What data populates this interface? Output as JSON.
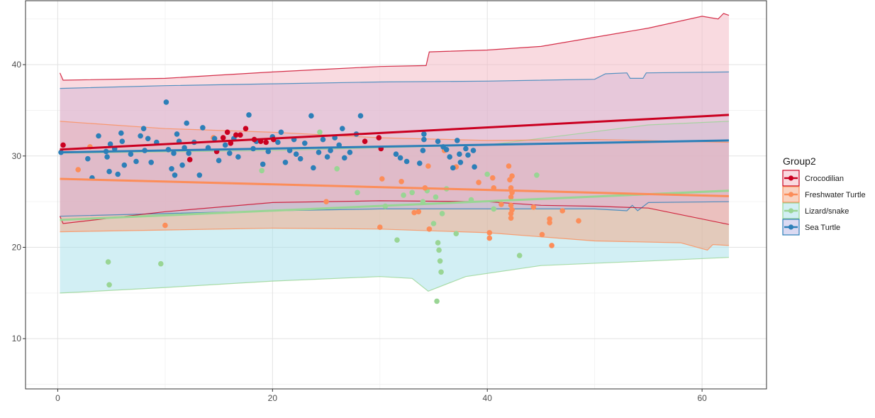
{
  "chart_data": {
    "type": "scatter",
    "title": "",
    "xlabel": "",
    "ylabel": "",
    "xlim": [
      -3,
      66
    ],
    "ylim": [
      4.5,
      47
    ],
    "x_ticks": [
      0,
      20,
      40,
      60
    ],
    "y_ticks": [
      10,
      20,
      30,
      40
    ],
    "grid": true,
    "legend": {
      "title": "Group2",
      "position": "right",
      "entries": [
        "Crocodilian",
        "Freshwater Turtle",
        "Lizard/snake",
        "Sea Turtle"
      ]
    },
    "series": [
      {
        "name": "Lizard/snake",
        "color": "#99D594",
        "fill": "#A6E0EA",
        "trend": {
          "x": [
            0.2,
            62.5
          ],
          "y": [
            23.0,
            26.2
          ]
        },
        "band_upper": [
          [
            0.2,
            30.3
          ],
          [
            20,
            30.6
          ],
          [
            40,
            31.2
          ],
          [
            55,
            33.4
          ],
          [
            62.5,
            33.8
          ]
        ],
        "band_lower": [
          [
            0.2,
            15.0
          ],
          [
            2,
            15.1
          ],
          [
            10,
            15.6
          ],
          [
            20,
            16.3
          ],
          [
            30,
            16.8
          ],
          [
            33,
            16.6
          ],
          [
            34.5,
            15.2
          ],
          [
            38,
            16.8
          ],
          [
            45,
            18.0
          ],
          [
            55,
            18.5
          ],
          [
            62.5,
            18.9
          ]
        ],
        "points": [
          [
            4.7,
            18.4
          ],
          [
            4.8,
            15.9
          ],
          [
            9.6,
            18.2
          ],
          [
            19,
            28.4
          ],
          [
            24.4,
            32.6
          ],
          [
            26,
            28.6
          ],
          [
            27.9,
            26.0
          ],
          [
            30.5,
            24.5
          ],
          [
            31.6,
            20.8
          ],
          [
            32.2,
            25.7
          ],
          [
            33,
            26.0
          ],
          [
            34,
            25.0
          ],
          [
            34.4,
            26.2
          ],
          [
            35,
            22.6
          ],
          [
            35.2,
            25.5
          ],
          [
            35.4,
            20.5
          ],
          [
            35.5,
            19.7
          ],
          [
            35.6,
            18.5
          ],
          [
            35.7,
            17.3
          ],
          [
            35.3,
            14.1
          ],
          [
            35.8,
            23.7
          ],
          [
            36.2,
            26.4
          ],
          [
            37.1,
            21.5
          ],
          [
            38.5,
            25.2
          ],
          [
            40,
            28.0
          ],
          [
            43,
            19.1
          ],
          [
            44.6,
            27.9
          ],
          [
            40.6,
            24.2
          ]
        ]
      },
      {
        "name": "Freshwater Turtle",
        "color": "#FC8D59",
        "fill": "#F4A582",
        "trend": {
          "x": [
            0.2,
            62.5
          ],
          "y": [
            27.5,
            25.6
          ]
        },
        "band_upper": [
          [
            0.2,
            33.8
          ],
          [
            10,
            33.0
          ],
          [
            20,
            32.6
          ],
          [
            30,
            32.0
          ],
          [
            40,
            31.7
          ],
          [
            50,
            31.8
          ],
          [
            62.5,
            31.5
          ]
        ],
        "band_lower": [
          [
            0.2,
            21.7
          ],
          [
            10,
            21.9
          ],
          [
            20,
            22.1
          ],
          [
            30,
            22.0
          ],
          [
            40,
            21.6
          ],
          [
            50,
            20.7
          ],
          [
            58,
            20.5
          ],
          [
            60.5,
            19.7
          ],
          [
            61,
            20.3
          ],
          [
            62.5,
            20.2
          ]
        ],
        "points": [
          [
            1.9,
            28.5
          ],
          [
            3,
            31
          ],
          [
            10,
            22.4
          ],
          [
            14.5,
            32.0
          ],
          [
            25,
            25.0
          ],
          [
            30,
            22.2
          ],
          [
            30.2,
            27.5
          ],
          [
            32,
            27.2
          ],
          [
            33.2,
            23.8
          ],
          [
            33.6,
            23.9
          ],
          [
            34.2,
            26.5
          ],
          [
            34.5,
            28.9
          ],
          [
            34.6,
            22.0
          ],
          [
            36,
            30.6
          ],
          [
            37.1,
            28.8
          ],
          [
            39.2,
            27.1
          ],
          [
            40.2,
            21.6
          ],
          [
            40.2,
            21.0
          ],
          [
            40.5,
            27.6
          ],
          [
            40.6,
            26.5
          ],
          [
            41.3,
            24.7
          ],
          [
            42,
            28.9
          ],
          [
            42.1,
            27.4
          ],
          [
            42.2,
            26.5
          ],
          [
            42.2,
            25.5
          ],
          [
            42.2,
            24.6
          ],
          [
            42.2,
            23.7
          ],
          [
            42.2,
            23.2
          ],
          [
            42.3,
            27.8
          ],
          [
            42.3,
            26.0
          ],
          [
            42.3,
            24.1
          ],
          [
            44.3,
            24.4
          ],
          [
            45.1,
            21.4
          ],
          [
            45.8,
            23.1
          ],
          [
            45.8,
            22.7
          ],
          [
            46,
            20.2
          ],
          [
            47,
            24.0
          ],
          [
            48.5,
            22.9
          ]
        ]
      },
      {
        "name": "Sea Turtle",
        "color": "#2C7FB8",
        "fill": "#B7B5E6",
        "trend": {
          "x": [
            0.2,
            62.5
          ],
          "y": [
            30.4,
            31.7
          ]
        },
        "band_upper": [
          [
            0.2,
            37.4
          ],
          [
            10,
            37.7
          ],
          [
            20,
            37.9
          ],
          [
            30,
            38.1
          ],
          [
            40,
            38.2
          ],
          [
            50,
            38.4
          ],
          [
            51,
            39.0
          ],
          [
            53,
            39.1
          ],
          [
            53.3,
            38.5
          ],
          [
            54.5,
            38.5
          ],
          [
            54.8,
            39.1
          ],
          [
            62.5,
            39.2
          ]
        ],
        "band_lower": [
          [
            0.2,
            23.4
          ],
          [
            10,
            23.7
          ],
          [
            20,
            24.0
          ],
          [
            30,
            24.2
          ],
          [
            40,
            24.2
          ],
          [
            50,
            24.2
          ],
          [
            53,
            24.0
          ],
          [
            53.5,
            24.6
          ],
          [
            54,
            24.0
          ],
          [
            55,
            24.9
          ],
          [
            62.5,
            25.0
          ]
        ],
        "points": [
          [
            0.3,
            30.4
          ],
          [
            2.8,
            29.7
          ],
          [
            3.2,
            27.6
          ],
          [
            3.8,
            32.2
          ],
          [
            4.5,
            30.5
          ],
          [
            4.6,
            29.9
          ],
          [
            4.8,
            28.3
          ],
          [
            4.9,
            31.3
          ],
          [
            5.3,
            30.8
          ],
          [
            5.6,
            28.0
          ],
          [
            5.9,
            32.5
          ],
          [
            6.0,
            31.6
          ],
          [
            6.2,
            29.0
          ],
          [
            6.8,
            30.2
          ],
          [
            7.3,
            29.4
          ],
          [
            7.7,
            32.2
          ],
          [
            8,
            33.0
          ],
          [
            8.1,
            30.6
          ],
          [
            8.4,
            31.9
          ],
          [
            8.7,
            29.3
          ],
          [
            9.2,
            31.5
          ],
          [
            10.1,
            35.9
          ],
          [
            10.3,
            30.7
          ],
          [
            10.6,
            28.6
          ],
          [
            10.8,
            30.3
          ],
          [
            10.9,
            27.9
          ],
          [
            11.1,
            32.4
          ],
          [
            11.3,
            31.6
          ],
          [
            11.6,
            29.0
          ],
          [
            11.8,
            30.9
          ],
          [
            12.0,
            33.6
          ],
          [
            12.2,
            30.3
          ],
          [
            12.7,
            31.5
          ],
          [
            13.2,
            27.9
          ],
          [
            13.5,
            33.1
          ],
          [
            14.0,
            30.9
          ],
          [
            14.6,
            31.9
          ],
          [
            15.0,
            29.5
          ],
          [
            15.6,
            31.2
          ],
          [
            16.0,
            30.3
          ],
          [
            16.4,
            31.9
          ],
          [
            16.8,
            29.9
          ],
          [
            17.8,
            34.5
          ],
          [
            18.2,
            30.8
          ],
          [
            18.5,
            31.6
          ],
          [
            19.1,
            29.1
          ],
          [
            19.6,
            30.5
          ],
          [
            20.0,
            32.1
          ],
          [
            20.5,
            31.5
          ],
          [
            20.8,
            32.6
          ],
          [
            21.2,
            29.3
          ],
          [
            21.6,
            30.6
          ],
          [
            22.0,
            31.8
          ],
          [
            22.2,
            30.2
          ],
          [
            22.6,
            29.7
          ],
          [
            23.0,
            31.4
          ],
          [
            23.6,
            34.4
          ],
          [
            23.8,
            28.7
          ],
          [
            24.3,
            30.4
          ],
          [
            24.7,
            31.8
          ],
          [
            25.1,
            29.9
          ],
          [
            25.4,
            30.6
          ],
          [
            25.8,
            32.0
          ],
          [
            26.2,
            31.2
          ],
          [
            26.5,
            33.0
          ],
          [
            26.7,
            29.8
          ],
          [
            27.2,
            30.4
          ],
          [
            27.8,
            32.4
          ],
          [
            28.2,
            34.4
          ],
          [
            31.5,
            30.2
          ],
          [
            31.9,
            29.8
          ],
          [
            32.5,
            29.4
          ],
          [
            33.7,
            29.2
          ],
          [
            34.0,
            30.6
          ],
          [
            34.1,
            31.8
          ],
          [
            34.1,
            32.4
          ],
          [
            35.4,
            31.6
          ],
          [
            35.9,
            31.0
          ],
          [
            36.2,
            30.7
          ],
          [
            36.5,
            29.9
          ],
          [
            36.8,
            28.7
          ],
          [
            37.2,
            31.7
          ],
          [
            37.4,
            30.2
          ],
          [
            37.5,
            29.3
          ],
          [
            38.0,
            30.8
          ],
          [
            38.2,
            30.1
          ],
          [
            38.7,
            30.6
          ],
          [
            38.8,
            28.8
          ]
        ]
      },
      {
        "name": "Crocodilian",
        "color": "#CA0020",
        "fill": "#F4B6C2",
        "trend": {
          "x": [
            0.2,
            62.5
          ],
          "y": [
            30.7,
            34.5
          ]
        },
        "band_upper": [
          [
            0.2,
            39.1
          ],
          [
            0.5,
            38.3
          ],
          [
            10,
            38.5
          ],
          [
            20,
            39.2
          ],
          [
            25,
            39.5
          ],
          [
            30,
            39.8
          ],
          [
            34.3,
            39.9
          ],
          [
            34.6,
            41.4
          ],
          [
            40,
            41.6
          ],
          [
            45,
            42.0
          ],
          [
            50,
            43.0
          ],
          [
            55,
            44.0
          ],
          [
            60,
            45.3
          ],
          [
            61.5,
            45.0
          ],
          [
            62,
            45.6
          ],
          [
            62.5,
            45.4
          ]
        ],
        "band_lower": [
          [
            0.2,
            23.4
          ],
          [
            0.5,
            22.6
          ],
          [
            10,
            23.9
          ],
          [
            20,
            24.9
          ],
          [
            30,
            25.1
          ],
          [
            40,
            25.0
          ],
          [
            45,
            24.6
          ],
          [
            50,
            24.5
          ],
          [
            55,
            24.3
          ],
          [
            62.5,
            22.5
          ]
        ],
        "points": [
          [
            0.5,
            31.2
          ],
          [
            12.3,
            29.6
          ],
          [
            14.8,
            30.5
          ],
          [
            15.4,
            32.0
          ],
          [
            15.8,
            32.6
          ],
          [
            16.1,
            31.4
          ],
          [
            16.6,
            32.3
          ],
          [
            17.0,
            32.3
          ],
          [
            17.5,
            33.0
          ],
          [
            18.3,
            31.8
          ],
          [
            18.9,
            31.6
          ],
          [
            19.4,
            31.5
          ],
          [
            20.1,
            31.8
          ],
          [
            28.6,
            31.6
          ],
          [
            29.9,
            32.0
          ],
          [
            30.1,
            30.8
          ]
        ]
      }
    ]
  }
}
